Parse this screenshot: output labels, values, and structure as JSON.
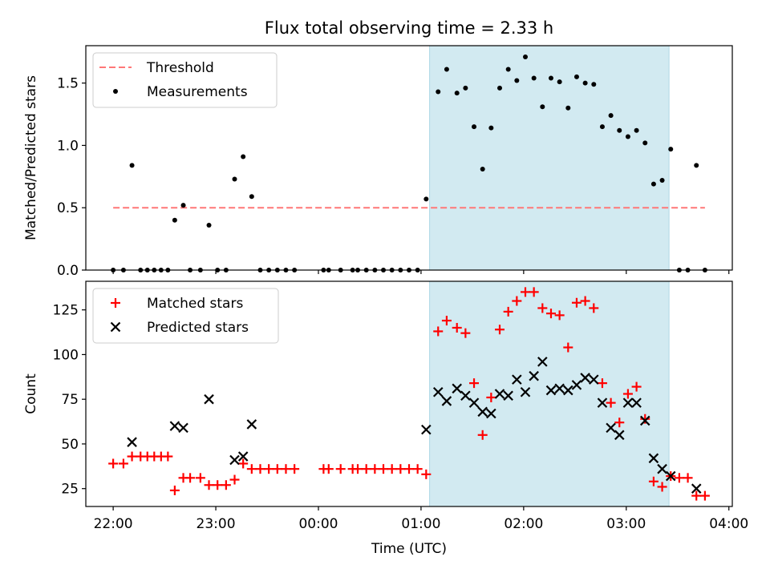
{
  "chart_data": {
    "type": "scatter",
    "title": "Flux total observing time = 2.33 h",
    "xlabel": "Time (UTC)",
    "x_ticks": [
      "22:00",
      "23:00",
      "00:00",
      "01:00",
      "02:00",
      "03:00",
      "04:00"
    ],
    "x_tick_values_min": [
      0,
      60,
      120,
      180,
      240,
      300,
      360
    ],
    "xlim_min": [
      -16,
      362
    ],
    "shaded_interval_min": [
      185,
      325
    ],
    "colors": {
      "threshold": "#ff7777",
      "measurements": "#000000",
      "matched": "#ff0000",
      "predicted": "#000000",
      "shade": "#add8e6"
    },
    "panels": [
      {
        "ylabel": "Matched/Predicted stars",
        "ylim": [
          0,
          1.8
        ],
        "y_ticks": [
          "0.0",
          "0.5",
          "1.0",
          "1.5"
        ],
        "y_tick_values": [
          0,
          0.5,
          1.0,
          1.5
        ],
        "legend": [
          "Threshold",
          "Measurements"
        ],
        "threshold": {
          "y": 0.5,
          "x_range_min": [
            0,
            346
          ]
        },
        "measurements": [
          [
            0,
            0
          ],
          [
            6,
            0
          ],
          [
            11,
            0.84
          ],
          [
            16,
            0
          ],
          [
            20,
            0
          ],
          [
            24,
            0
          ],
          [
            28,
            0
          ],
          [
            32,
            0
          ],
          [
            36,
            0.4
          ],
          [
            41,
            0.52
          ],
          [
            45,
            0
          ],
          [
            51,
            0
          ],
          [
            56,
            0.36
          ],
          [
            61,
            0
          ],
          [
            66,
            0
          ],
          [
            71,
            0.73
          ],
          [
            76,
            0.91
          ],
          [
            81,
            0.59
          ],
          [
            86,
            0
          ],
          [
            91,
            0
          ],
          [
            96,
            0
          ],
          [
            101,
            0
          ],
          [
            106,
            0
          ],
          [
            123,
            0
          ],
          [
            126,
            0
          ],
          [
            133,
            0
          ],
          [
            140,
            0
          ],
          [
            143,
            0
          ],
          [
            148,
            0
          ],
          [
            153,
            0
          ],
          [
            158,
            0
          ],
          [
            163,
            0
          ],
          [
            168,
            0
          ],
          [
            173,
            0
          ],
          [
            178,
            0
          ],
          [
            183,
            0.57
          ],
          [
            190,
            1.43
          ],
          [
            195,
            1.61
          ],
          [
            201,
            1.42
          ],
          [
            206,
            1.46
          ],
          [
            211,
            1.15
          ],
          [
            216,
            0.81
          ],
          [
            221,
            1.14
          ],
          [
            226,
            1.46
          ],
          [
            231,
            1.61
          ],
          [
            236,
            1.52
          ],
          [
            241,
            1.71
          ],
          [
            246,
            1.54
          ],
          [
            251,
            1.31
          ],
          [
            256,
            1.54
          ],
          [
            261,
            1.51
          ],
          [
            266,
            1.3
          ],
          [
            271,
            1.55
          ],
          [
            276,
            1.5
          ],
          [
            281,
            1.49
          ],
          [
            286,
            1.15
          ],
          [
            291,
            1.24
          ],
          [
            296,
            1.12
          ],
          [
            301,
            1.07
          ],
          [
            306,
            1.12
          ],
          [
            311,
            1.02
          ],
          [
            316,
            0.69
          ],
          [
            321,
            0.72
          ],
          [
            326,
            0.97
          ],
          [
            331,
            0
          ],
          [
            336,
            0
          ],
          [
            341,
            0.84
          ],
          [
            346,
            0
          ]
        ]
      },
      {
        "ylabel": "Count",
        "ylim": [
          15,
          141
        ],
        "y_ticks": [
          "25",
          "50",
          "75",
          "100",
          "125"
        ],
        "y_tick_values": [
          25,
          50,
          75,
          100,
          125
        ],
        "legend": [
          "Matched stars",
          "Predicted stars"
        ],
        "matched_stars": [
          [
            0,
            39
          ],
          [
            6,
            39
          ],
          [
            11,
            43
          ],
          [
            16,
            43
          ],
          [
            20,
            43
          ],
          [
            24,
            43
          ],
          [
            28,
            43
          ],
          [
            32,
            43
          ],
          [
            36,
            24
          ],
          [
            41,
            31
          ],
          [
            45,
            31
          ],
          [
            51,
            31
          ],
          [
            56,
            27
          ],
          [
            61,
            27
          ],
          [
            66,
            27
          ],
          [
            71,
            30
          ],
          [
            76,
            39
          ],
          [
            81,
            36
          ],
          [
            86,
            36
          ],
          [
            91,
            36
          ],
          [
            96,
            36
          ],
          [
            101,
            36
          ],
          [
            106,
            36
          ],
          [
            123,
            36
          ],
          [
            126,
            36
          ],
          [
            133,
            36
          ],
          [
            140,
            36
          ],
          [
            143,
            36
          ],
          [
            148,
            36
          ],
          [
            153,
            36
          ],
          [
            158,
            36
          ],
          [
            163,
            36
          ],
          [
            168,
            36
          ],
          [
            173,
            36
          ],
          [
            178,
            36
          ],
          [
            183,
            33
          ],
          [
            190,
            113
          ],
          [
            195,
            119
          ],
          [
            201,
            115
          ],
          [
            206,
            112
          ],
          [
            211,
            84
          ],
          [
            216,
            55
          ],
          [
            221,
            76
          ],
          [
            226,
            114
          ],
          [
            231,
            124
          ],
          [
            236,
            130
          ],
          [
            241,
            135
          ],
          [
            246,
            135
          ],
          [
            251,
            126
          ],
          [
            256,
            123
          ],
          [
            261,
            122
          ],
          [
            266,
            104
          ],
          [
            271,
            129
          ],
          [
            276,
            130
          ],
          [
            281,
            126
          ],
          [
            286,
            84
          ],
          [
            291,
            73
          ],
          [
            296,
            62
          ],
          [
            301,
            78
          ],
          [
            306,
            82
          ],
          [
            311,
            64
          ],
          [
            316,
            29
          ],
          [
            321,
            26
          ],
          [
            326,
            32
          ],
          [
            331,
            31
          ],
          [
            336,
            31
          ],
          [
            341,
            21
          ],
          [
            346,
            21
          ]
        ],
        "predicted_stars": [
          [
            11,
            51
          ],
          [
            36,
            60
          ],
          [
            41,
            59
          ],
          [
            56,
            75
          ],
          [
            71,
            41
          ],
          [
            76,
            43
          ],
          [
            81,
            61
          ],
          [
            183,
            58
          ],
          [
            190,
            79
          ],
          [
            195,
            74
          ],
          [
            201,
            81
          ],
          [
            206,
            77
          ],
          [
            211,
            73
          ],
          [
            216,
            68
          ],
          [
            221,
            67
          ],
          [
            226,
            78
          ],
          [
            231,
            77
          ],
          [
            236,
            86
          ],
          [
            241,
            79
          ],
          [
            246,
            88
          ],
          [
            251,
            96
          ],
          [
            256,
            80
          ],
          [
            261,
            81
          ],
          [
            266,
            80
          ],
          [
            271,
            83
          ],
          [
            276,
            87
          ],
          [
            281,
            86
          ],
          [
            286,
            73
          ],
          [
            291,
            59
          ],
          [
            296,
            55
          ],
          [
            301,
            73
          ],
          [
            306,
            73
          ],
          [
            311,
            63
          ],
          [
            316,
            42
          ],
          [
            321,
            36
          ],
          [
            326,
            32
          ],
          [
            341,
            25
          ]
        ]
      }
    ]
  }
}
